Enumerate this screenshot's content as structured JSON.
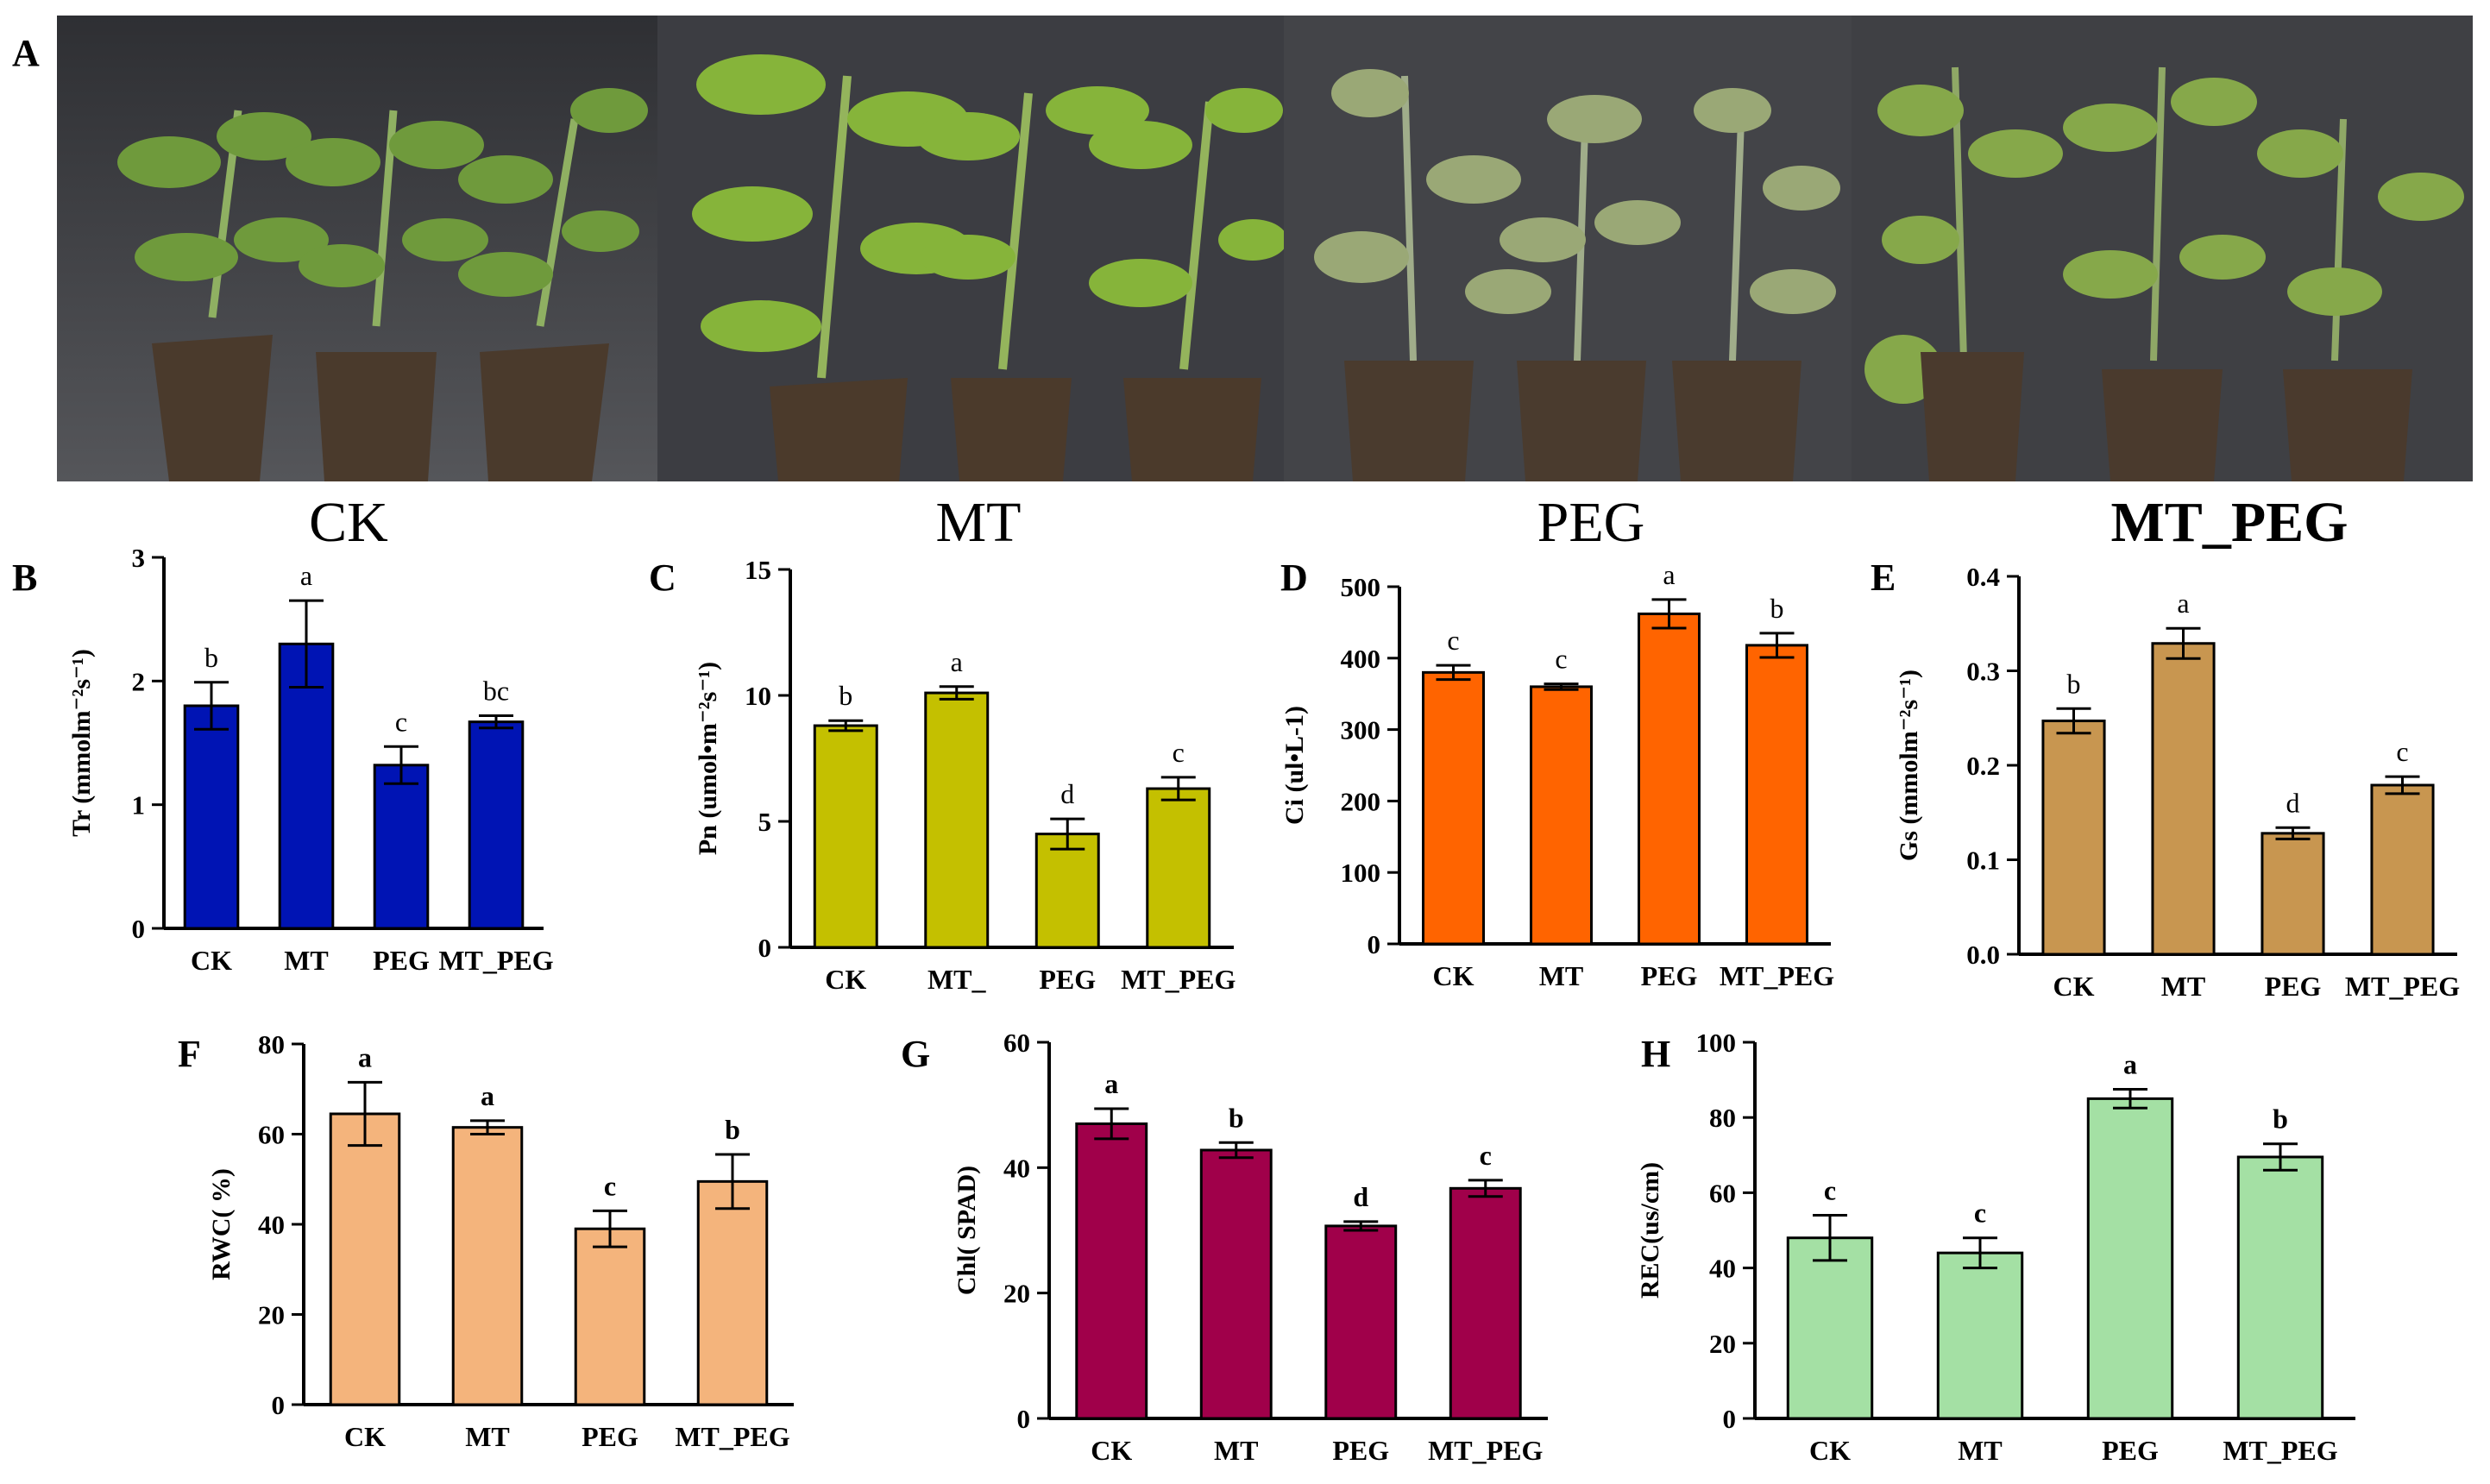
{
  "figure": {
    "panels_letters": [
      "A",
      "B",
      "C",
      "D",
      "E",
      "F",
      "G",
      "H"
    ],
    "photo_captions": [
      "CK",
      "MT",
      "PEG",
      "MT_PEG"
    ]
  },
  "chart_data": [
    {
      "id": "B",
      "type": "bar",
      "letter": "B",
      "categories": [
        "CK",
        "MT",
        "PEG",
        "MT_PEG"
      ],
      "values": [
        1.8,
        2.3,
        1.32,
        1.67
      ],
      "errors": [
        0.19,
        0.35,
        0.15,
        0.05
      ],
      "letters": [
        "b",
        "a",
        "c",
        "bc"
      ],
      "ylabel": "Tr (mmolm⁻²s⁻¹)",
      "ylim": [
        0,
        3
      ],
      "yticks": [
        0,
        1,
        2,
        3
      ],
      "tick_format": 0,
      "color": "#0014b4",
      "label_bold": false
    },
    {
      "id": "C",
      "type": "bar",
      "letter": "C",
      "categories": [
        "CK",
        "MT_",
        "PEG",
        "MT_PEG"
      ],
      "values": [
        8.8,
        10.1,
        4.5,
        6.3
      ],
      "errors": [
        0.2,
        0.25,
        0.6,
        0.45
      ],
      "letters": [
        "b",
        "a",
        "d",
        "c"
      ],
      "ylabel": "Pn (umol•m⁻²s⁻¹)",
      "ylim": [
        0,
        15
      ],
      "yticks": [
        0,
        5,
        10,
        15
      ],
      "tick_format": 0,
      "color": "#c4c000",
      "label_bold": false
    },
    {
      "id": "D",
      "type": "bar",
      "letter": "D",
      "categories": [
        "CK",
        "MT",
        "PEG",
        "MT_PEG"
      ],
      "values": [
        380,
        360,
        462,
        418
      ],
      "errors": [
        10,
        4,
        20,
        17
      ],
      "letters": [
        "c",
        "c",
        "a",
        "b"
      ],
      "ylabel": "Ci (ul•L-1)",
      "ylim": [
        0,
        500
      ],
      "yticks": [
        0,
        100,
        200,
        300,
        400,
        500
      ],
      "tick_format": 0,
      "color": "#ff6400",
      "label_bold": false
    },
    {
      "id": "E",
      "type": "bar",
      "letter": "E",
      "categories": [
        "CK",
        "MT",
        "PEG",
        "MT_PEG"
      ],
      "values": [
        0.247,
        0.329,
        0.128,
        0.179
      ],
      "errors": [
        0.013,
        0.016,
        0.006,
        0.009
      ],
      "letters": [
        "b",
        "a",
        "d",
        "c"
      ],
      "ylabel": "Gs (mmolm⁻²s⁻¹)",
      "ylim": [
        0,
        0.4
      ],
      "yticks": [
        0.0,
        0.1,
        0.2,
        0.3,
        0.4
      ],
      "tick_format": 1,
      "color": "#c89650",
      "label_bold": false
    },
    {
      "id": "F",
      "type": "bar",
      "letter": "F",
      "categories": [
        "CK",
        "MT",
        "PEG",
        "MT_PEG"
      ],
      "values": [
        64.5,
        61.5,
        39,
        49.5
      ],
      "errors": [
        7,
        1.5,
        4,
        6
      ],
      "letters": [
        "a",
        "a",
        "c",
        "b"
      ],
      "ylabel": "RWC( %)",
      "ylim": [
        0,
        80
      ],
      "yticks": [
        0,
        20,
        40,
        60,
        80
      ],
      "tick_format": 0,
      "color": "#f4b47c",
      "label_bold": true
    },
    {
      "id": "G",
      "type": "bar",
      "letter": "G",
      "categories": [
        "CK",
        "MT",
        "PEG",
        "MT_PEG"
      ],
      "values": [
        47,
        42.8,
        30.7,
        36.7
      ],
      "errors": [
        2.4,
        1.2,
        0.7,
        1.3
      ],
      "letters": [
        "a",
        "b",
        "d",
        "c"
      ],
      "ylabel": "Chl( SPAD)",
      "ylim": [
        0,
        60
      ],
      "yticks": [
        0,
        20,
        40,
        60
      ],
      "tick_format": 0,
      "color": "#a0004a",
      "label_bold": true
    },
    {
      "id": "H",
      "type": "bar",
      "letter": "H",
      "categories": [
        "CK",
        "MT",
        "PEG",
        "MT_PEG"
      ],
      "values": [
        48,
        44,
        85,
        69.5
      ],
      "errors": [
        6,
        4,
        2.5,
        3.5
      ],
      "letters": [
        "c",
        "c",
        "a",
        "b"
      ],
      "ylabel": "REC(us/cm)",
      "ylim": [
        0,
        100
      ],
      "yticks": [
        0,
        20,
        40,
        60,
        80,
        100
      ],
      "tick_format": 0,
      "color": "#a4e0a4",
      "label_bold": true
    }
  ]
}
